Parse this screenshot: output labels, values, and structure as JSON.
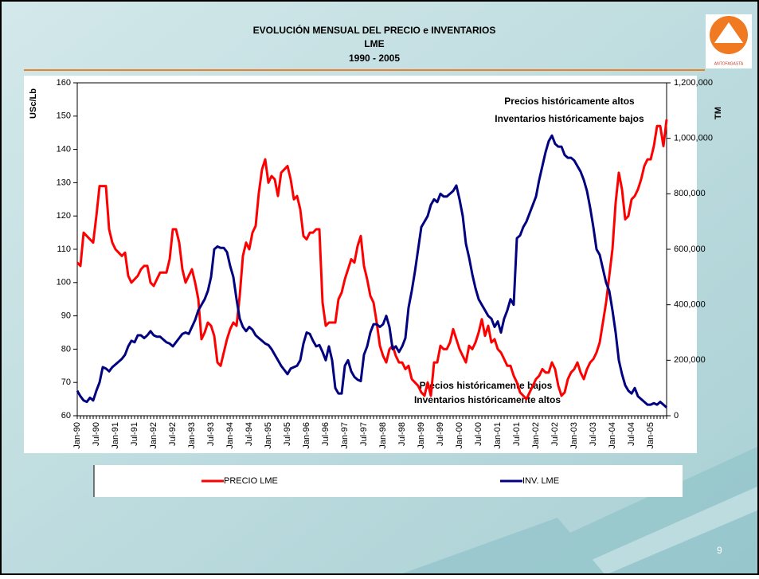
{
  "chart_data": {
    "type": "line",
    "title": "EVOLUCIÓN MENSUAL DEL PRECIO e INVENTARIOS",
    "subtitle": "LME",
    "period": "1990 - 2005",
    "y_label": "USc/Lb",
    "y2_label": "TM",
    "logo_text": "ANTOFAGASTA",
    "page_number": "9",
    "annotations": [
      "Precios históricamente altos",
      "Inventarios históricamente bajos",
      "Precios históricamente bajos",
      "Inventarios históricamente altos"
    ],
    "categories": [
      "Jan-90",
      null,
      null,
      null,
      null,
      null,
      "Jul-90",
      null,
      null,
      null,
      null,
      null,
      "Jan-91",
      null,
      null,
      null,
      null,
      null,
      "Jul-91",
      null,
      null,
      null,
      null,
      null,
      "Jan-92",
      null,
      null,
      null,
      null,
      null,
      "Jul-92",
      null,
      null,
      null,
      null,
      null,
      "Jan-93",
      null,
      null,
      null,
      null,
      null,
      "Jul-93",
      null,
      null,
      null,
      null,
      null,
      "Jan-94",
      null,
      null,
      null,
      null,
      null,
      "Jul-94",
      null,
      null,
      null,
      null,
      null,
      "Jan-95",
      null,
      null,
      null,
      null,
      null,
      "Jul-95",
      null,
      null,
      null,
      null,
      null,
      "Jan-96",
      null,
      null,
      null,
      null,
      null,
      "Jul-96",
      null,
      null,
      null,
      null,
      null,
      "Jan-97",
      null,
      null,
      null,
      null,
      null,
      "Jul-97",
      null,
      null,
      null,
      null,
      null,
      "Jan-98",
      null,
      null,
      null,
      null,
      null,
      "Jul-98",
      null,
      null,
      null,
      null,
      null,
      "Jan-99",
      null,
      null,
      null,
      null,
      null,
      "Jul-99",
      null,
      null,
      null,
      null,
      null,
      "Jan-00",
      null,
      null,
      null,
      null,
      null,
      "Jul-00",
      null,
      null,
      null,
      null,
      null,
      "Jan-01",
      null,
      null,
      null,
      null,
      null,
      "Jul-01",
      null,
      null,
      null,
      null,
      null,
      "Jan-02",
      null,
      null,
      null,
      null,
      null,
      "Jul-02",
      null,
      null,
      null,
      null,
      null,
      "Jan-03",
      null,
      null,
      null,
      null,
      null,
      "Jul-03",
      null,
      null,
      null,
      null,
      null,
      "Jan-04",
      null,
      null,
      null,
      null,
      null,
      "Jul-04",
      null,
      null,
      null,
      null,
      null,
      "Jan-05",
      null,
      null,
      null,
      null,
      null
    ],
    "series": [
      {
        "name": "PRECIO LME",
        "color": "#ff0000",
        "values": [
          106,
          105,
          115,
          114,
          113,
          112,
          120,
          129,
          129,
          129,
          116,
          112,
          110,
          109,
          108,
          109,
          102,
          100,
          101,
          102,
          104,
          105,
          105,
          100,
          99,
          101,
          103,
          103,
          103,
          107,
          116,
          116,
          112,
          104,
          100,
          102,
          104,
          100,
          95,
          83,
          85,
          88,
          87,
          84,
          76,
          75,
          79,
          83,
          86,
          88,
          87,
          96,
          108,
          112,
          110,
          115,
          117,
          127,
          134,
          137,
          130,
          132,
          131,
          126,
          133,
          134,
          135,
          131,
          125,
          126,
          122,
          114,
          113,
          115,
          115,
          116,
          116,
          94,
          87,
          88,
          88,
          88,
          95,
          97,
          101,
          104,
          107,
          106,
          111,
          114,
          105,
          101,
          96,
          94,
          88,
          81,
          78,
          76,
          80,
          81,
          78,
          76,
          76,
          74,
          75,
          71,
          70,
          69,
          67,
          66,
          70,
          66,
          76,
          76,
          81,
          80,
          80,
          82,
          86,
          83,
          80,
          78,
          76,
          81,
          80,
          82,
          85,
          89,
          84,
          87,
          82,
          83,
          80,
          79,
          77,
          75,
          75,
          72,
          70,
          67,
          66,
          65,
          67,
          69,
          71,
          72,
          74,
          73,
          73,
          76,
          74,
          69,
          66,
          67,
          71,
          73,
          74,
          76,
          73,
          71,
          74,
          76,
          77,
          79,
          82,
          88,
          94,
          102,
          110,
          124,
          133,
          128,
          119,
          120,
          125,
          126,
          128,
          131,
          135,
          137,
          137,
          141,
          147,
          147,
          141,
          149
        ]
      },
      {
        "name": "INV. LME",
        "color": "#000080",
        "axis": "y2",
        "values": [
          90000,
          70000,
          55000,
          50000,
          65000,
          55000,
          90000,
          120000,
          175000,
          170000,
          160000,
          175000,
          185000,
          195000,
          205000,
          220000,
          250000,
          270000,
          265000,
          290000,
          290000,
          280000,
          290000,
          305000,
          290000,
          285000,
          285000,
          275000,
          265000,
          260000,
          250000,
          265000,
          280000,
          295000,
          300000,
          295000,
          320000,
          345000,
          380000,
          400000,
          420000,
          450000,
          500000,
          600000,
          610000,
          605000,
          605000,
          590000,
          540000,
          500000,
          420000,
          350000,
          320000,
          305000,
          320000,
          310000,
          290000,
          280000,
          270000,
          260000,
          255000,
          240000,
          220000,
          200000,
          180000,
          165000,
          150000,
          170000,
          175000,
          180000,
          200000,
          260000,
          300000,
          295000,
          270000,
          250000,
          255000,
          230000,
          200000,
          250000,
          200000,
          100000,
          80000,
          80000,
          180000,
          200000,
          160000,
          140000,
          130000,
          125000,
          220000,
          250000,
          300000,
          330000,
          330000,
          320000,
          330000,
          360000,
          320000,
          240000,
          250000,
          230000,
          250000,
          280000,
          390000,
          450000,
          520000,
          600000,
          680000,
          700000,
          720000,
          760000,
          780000,
          770000,
          800000,
          790000,
          790000,
          800000,
          810000,
          830000,
          780000,
          720000,
          620000,
          570000,
          510000,
          460000,
          420000,
          400000,
          380000,
          360000,
          350000,
          320000,
          340000,
          300000,
          350000,
          380000,
          420000,
          400000,
          640000,
          650000,
          680000,
          700000,
          730000,
          760000,
          790000,
          850000,
          900000,
          950000,
          990000,
          1010000,
          980000,
          970000,
          970000,
          940000,
          930000,
          930000,
          920000,
          900000,
          880000,
          850000,
          810000,
          750000,
          680000,
          600000,
          580000,
          530000,
          480000,
          450000,
          380000,
          300000,
          200000,
          150000,
          110000,
          90000,
          80000,
          100000,
          70000,
          60000,
          50000,
          40000,
          40000,
          45000,
          40000,
          50000,
          40000,
          30000
        ]
      }
    ],
    "ylim": [
      60,
      160
    ],
    "yticks": [
      60,
      70,
      80,
      90,
      100,
      110,
      120,
      130,
      140,
      150,
      160
    ],
    "y2lim": [
      0,
      1200000
    ],
    "y2ticks": [
      0,
      {
        "value": 200000,
        "label": "200,000"
      },
      {
        "value": 400000,
        "label": "400,000"
      },
      {
        "value": 600000,
        "label": "600,000"
      },
      {
        "value": 800000,
        "label": "800,000"
      },
      {
        "value": 1000000,
        "label": "1,000,000"
      },
      {
        "value": 1200000,
        "label": "1,200,000"
      }
    ],
    "grid": false
  }
}
